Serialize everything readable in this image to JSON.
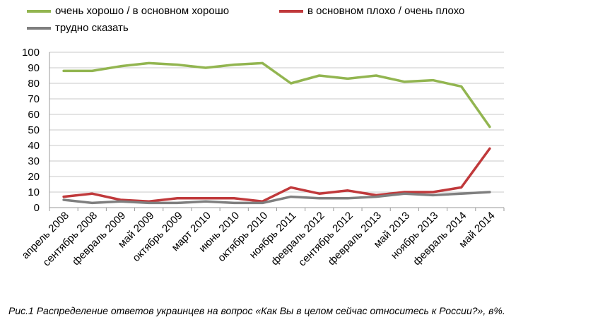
{
  "chart_data": {
    "type": "line",
    "categories": [
      "апрель 2008",
      "сентябрь 2008",
      "февраль 2009",
      "май 2009",
      "октябрь 2009",
      "март 2010",
      "июнь 2010",
      "октябрь 2010",
      "ноябрь 2011",
      "февраль 2012",
      "сентябрь 2012",
      "февраль 2013",
      "май 2013",
      "ноябрь 2013",
      "февраль 2014",
      "май 2014"
    ],
    "series": [
      {
        "name": "очень хорошо / в основном хорошо",
        "color": "#92b550",
        "values": [
          88,
          88,
          91,
          93,
          92,
          90,
          92,
          93,
          80,
          85,
          83,
          85,
          81,
          82,
          78,
          52
        ]
      },
      {
        "name": "в основном плохо / очень плохо",
        "color": "#c0393b",
        "values": [
          7,
          9,
          5,
          4,
          6,
          6,
          6,
          4,
          13,
          9,
          11,
          8,
          10,
          10,
          13,
          38
        ]
      },
      {
        "name": "трудно сказать",
        "color": "#7f7f7f",
        "values": [
          5,
          3,
          4,
          3,
          3,
          4,
          3,
          3,
          7,
          6,
          6,
          7,
          9,
          8,
          9,
          10
        ]
      }
    ],
    "ylim": [
      0,
      100
    ],
    "yticks": [
      0,
      10,
      20,
      30,
      40,
      50,
      60,
      70,
      80,
      90,
      100
    ],
    "grid": true,
    "legend_position": "top"
  },
  "caption": "Рис.1 Распределение ответов украинцев на вопрос «Как Вы в целом сейчас относитесь к России?», в%."
}
